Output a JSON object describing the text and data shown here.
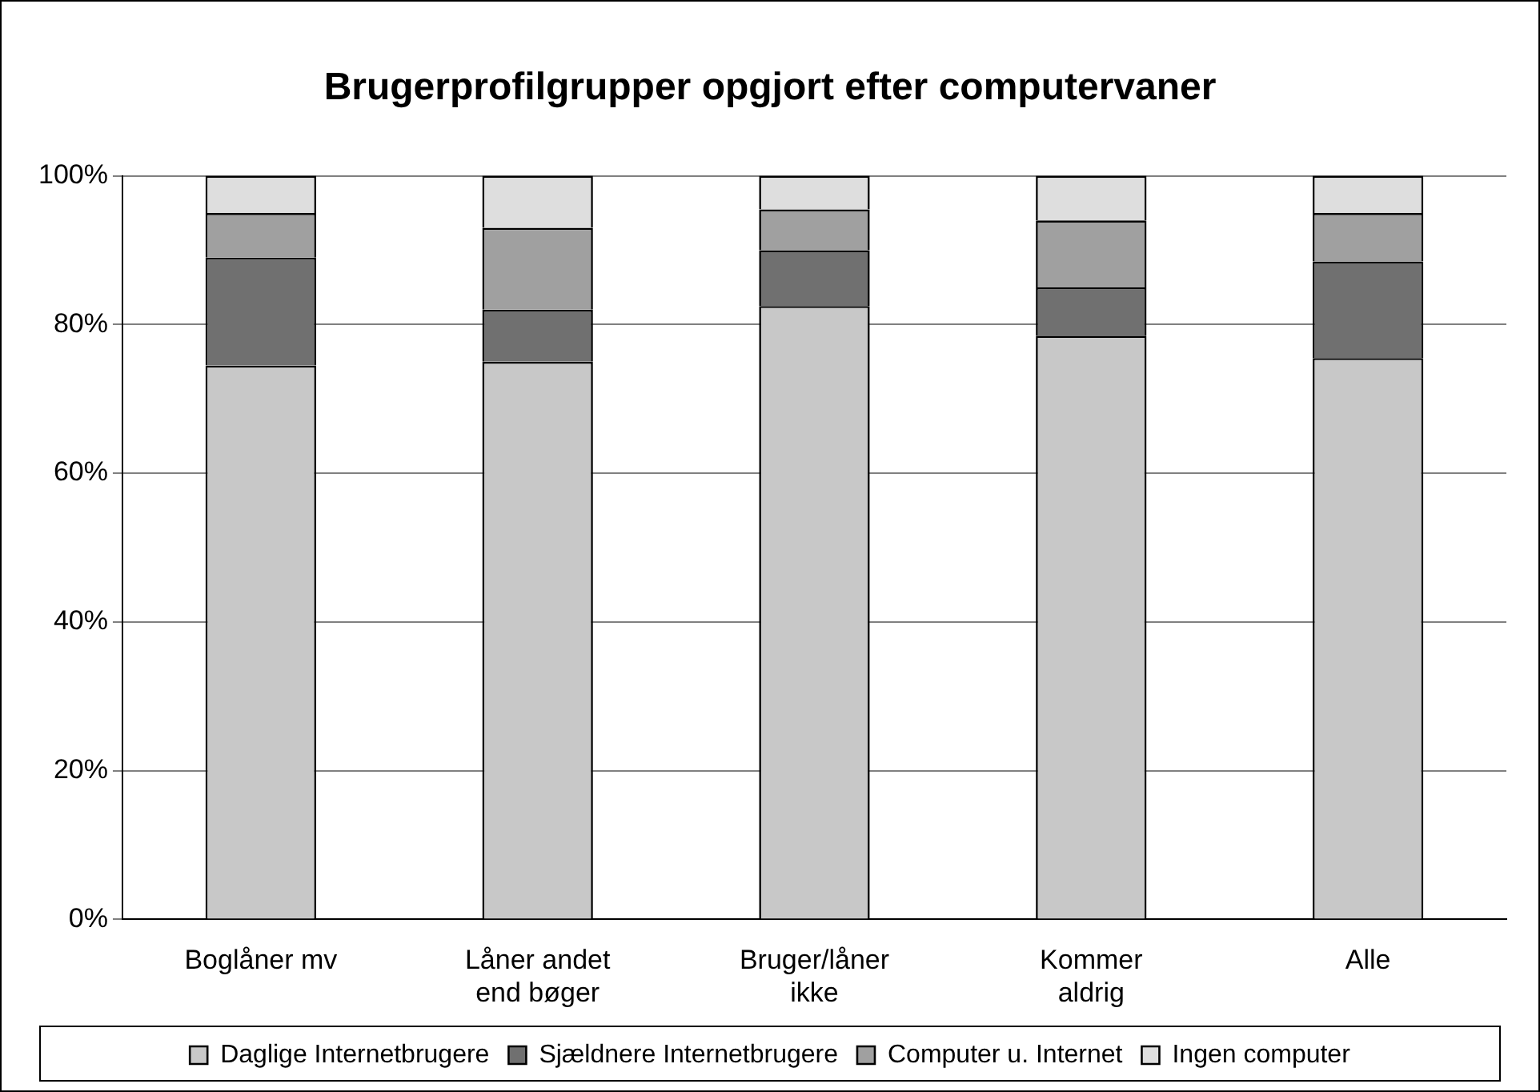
{
  "chart_data": {
    "type": "bar",
    "title": "Brugerprofilgrupper opgjort efter computervaner",
    "categories": [
      "Boglåner mv",
      "Låner andet end bøger",
      "Bruger/låner ikke",
      "Kommer aldrig",
      "Alle"
    ],
    "stacked": true,
    "series": [
      {
        "name": "Daglige Internetbrugere",
        "color": "#c8c8c8",
        "values": [
          74.5,
          75,
          82.5,
          78.5,
          75.5
        ]
      },
      {
        "name": "Sjældnere Internetbrugere",
        "color": "#707070",
        "values": [
          14.5,
          7,
          7.5,
          6.5,
          13
        ]
      },
      {
        "name": "Computer u. Internet",
        "color": "#a0a0a0",
        "values": [
          6,
          11,
          5.5,
          9,
          6.5
        ]
      },
      {
        "name": "Ingen computer",
        "color": "#dedede",
        "values": [
          5,
          7,
          4.5,
          6,
          5
        ]
      }
    ],
    "ylim": [
      0,
      100
    ],
    "yticks": [
      {
        "value": 0,
        "label": "0%"
      },
      {
        "value": 20,
        "label": "20%"
      },
      {
        "value": 40,
        "label": "40%"
      },
      {
        "value": 60,
        "label": "60%"
      },
      {
        "value": 80,
        "label": "80%"
      },
      {
        "value": 100,
        "label": "100%"
      }
    ],
    "grid": "y",
    "legend": "bottom"
  }
}
